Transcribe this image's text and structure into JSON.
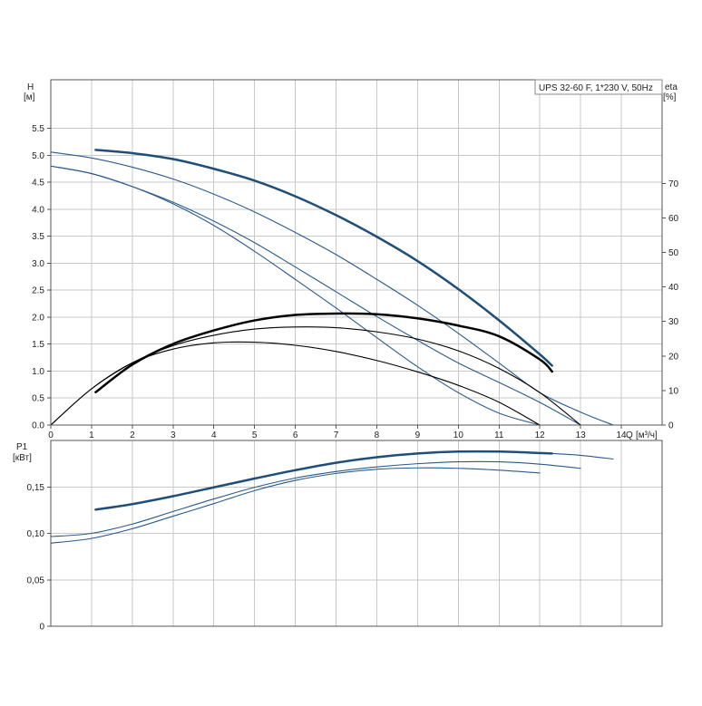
{
  "chart_data": [
    {
      "type": "line",
      "panel": "head-efficiency",
      "legend": "UPS 32-60 F, 1*230 V, 50Hz",
      "legend_placement": "top-right",
      "grid": true,
      "ylabel": "H",
      "yunit": "[м]",
      "y2label": "eta",
      "y2unit": "[%]",
      "xlabel": "Q",
      "xunit": "[м³/ч]",
      "xlim": [
        0,
        15
      ],
      "ylim": [
        0,
        6.4
      ],
      "y2lim": [
        0,
        100
      ],
      "x_ticks": [
        0,
        1,
        2,
        3,
        4,
        5,
        6,
        7,
        8,
        9,
        10,
        11,
        12,
        13,
        14
      ],
      "y_ticks": [
        "0.0",
        "0.5",
        "1.0",
        "1.5",
        "2.0",
        "2.5",
        "3.0",
        "3.5",
        "4.0",
        "4.5",
        "5.0",
        "5.5"
      ],
      "y2_ticks": [
        "0",
        "10",
        "20",
        "30",
        "40",
        "50",
        "60",
        "70"
      ],
      "series": [
        {
          "axis": "y",
          "color": "#1f4e79",
          "width": 2.5,
          "x": [
            1.1,
            2,
            3,
            4,
            5,
            6,
            7,
            8,
            9,
            10,
            11,
            12,
            12.3
          ],
          "y": [
            5.1,
            5.04,
            4.93,
            4.75,
            4.53,
            4.24,
            3.89,
            3.49,
            3.04,
            2.52,
            1.94,
            1.31,
            1.1
          ]
        },
        {
          "axis": "y",
          "color": "#2a5a8c",
          "width": 1.1,
          "x": [
            0,
            1,
            2,
            3,
            4,
            5,
            6,
            7,
            8,
            9,
            10,
            11,
            12,
            13,
            13.8
          ],
          "y": [
            5.06,
            4.95,
            4.78,
            4.56,
            4.28,
            3.95,
            3.57,
            3.16,
            2.7,
            2.22,
            1.7,
            1.15,
            0.6,
            0.24,
            0.0
          ]
        },
        {
          "axis": "y",
          "color": "#2a5a8c",
          "width": 1.1,
          "x": [
            0,
            1,
            2,
            3,
            4,
            5,
            6,
            7,
            8,
            9,
            10,
            11,
            12,
            13
          ],
          "y": [
            4.8,
            4.66,
            4.42,
            4.13,
            3.78,
            3.38,
            2.93,
            2.47,
            2.01,
            1.57,
            1.15,
            0.79,
            0.42,
            0.0
          ]
        },
        {
          "axis": "y",
          "color": "#2a5a8c",
          "width": 1.1,
          "x": [
            0,
            1,
            2,
            3,
            4,
            5,
            6,
            7,
            8,
            9,
            10,
            11,
            12
          ],
          "y": [
            4.8,
            4.66,
            4.42,
            4.1,
            3.7,
            3.22,
            2.7,
            2.17,
            1.62,
            1.08,
            0.6,
            0.22,
            0.0
          ]
        },
        {
          "axis": "y2",
          "color": "#000000",
          "width": 2.5,
          "x": [
            1.1,
            2,
            3,
            4,
            5,
            6,
            7,
            8,
            9,
            10,
            11,
            12,
            12.3
          ],
          "y": [
            9.5,
            17.5,
            23.5,
            27.4,
            30.3,
            31.9,
            32.3,
            32.1,
            30.9,
            28.8,
            25.7,
            19.0,
            15.5
          ]
        },
        {
          "axis": "y2",
          "color": "#000000",
          "width": 1.1,
          "x": [
            0,
            1,
            2,
            3,
            4,
            5,
            6,
            7,
            8,
            9,
            10,
            11,
            12,
            13
          ],
          "y": [
            0,
            10.5,
            18,
            23,
            26,
            27.8,
            28.4,
            28.2,
            27,
            24.9,
            21.5,
            16.4,
            9.4,
            0
          ]
        },
        {
          "axis": "y2",
          "color": "#000000",
          "width": 1.1,
          "x": [
            0,
            1,
            2,
            3,
            4,
            5,
            6,
            7,
            8,
            9,
            10,
            11,
            12
          ],
          "y": [
            0,
            10.5,
            18,
            22,
            23.8,
            24,
            23.1,
            21.3,
            18.7,
            15.4,
            11.5,
            6.6,
            0
          ]
        }
      ]
    },
    {
      "type": "line",
      "panel": "power",
      "grid": true,
      "ylabel": "P1",
      "yunit": "[кВт]",
      "xlim": [
        0,
        15
      ],
      "ylim": [
        0,
        0.2
      ],
      "y_ticks": [
        "0",
        "0,05",
        "0,10",
        "0,15"
      ],
      "y_tick_values": [
        0,
        0.05,
        0.1,
        0.15
      ],
      "series": [
        {
          "color": "#1f4e79",
          "width": 2.5,
          "x": [
            1.1,
            2,
            3,
            4,
            5,
            6,
            7,
            8,
            9,
            10,
            11,
            12,
            12.3
          ],
          "y": [
            0.1255,
            0.1315,
            0.14,
            0.1495,
            0.159,
            0.168,
            0.176,
            0.182,
            0.186,
            0.188,
            0.188,
            0.1865,
            0.186
          ]
        },
        {
          "color": "#2a5a8c",
          "width": 1.1,
          "x": [
            12.3,
            13,
            13.8
          ],
          "y": [
            0.186,
            0.184,
            0.18
          ]
        },
        {
          "color": "#2a5a8c",
          "width": 1.1,
          "x": [
            0,
            1,
            2,
            3,
            4,
            5,
            6,
            7,
            8,
            9,
            10,
            11,
            12,
            13
          ],
          "y": [
            0.0965,
            0.1,
            0.11,
            0.1235,
            0.137,
            0.1495,
            0.1595,
            0.1665,
            0.1715,
            0.175,
            0.177,
            0.177,
            0.1745,
            0.17
          ]
        },
        {
          "color": "#2a5a8c",
          "width": 1.1,
          "x": [
            0,
            1,
            2,
            3,
            4,
            5,
            6,
            7,
            8,
            9,
            10,
            11,
            12
          ],
          "y": [
            0.0895,
            0.0945,
            0.105,
            0.1185,
            0.132,
            0.146,
            0.157,
            0.1645,
            0.169,
            0.1705,
            0.17,
            0.168,
            0.165
          ]
        }
      ]
    }
  ]
}
